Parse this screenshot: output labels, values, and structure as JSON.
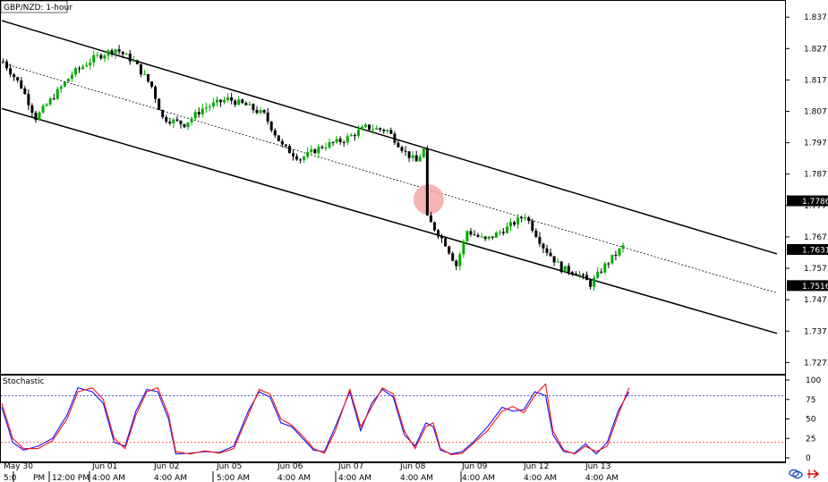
{
  "chart_data": {
    "type": "candlestick",
    "title": "GBP/NZD: 1-hour",
    "instrument": "GBP/NZD",
    "timeframe": "1-hour",
    "price_axis": {
      "ticks": [
        "1.8371",
        "1.8271",
        "1.8171",
        "1.8071",
        "1.7971",
        "1.7871",
        "1.7771",
        "1.7671",
        "1.7571",
        "1.7471",
        "1.7371",
        "1.7271"
      ],
      "ylim": [
        1.7235,
        1.842
      ]
    },
    "price_badges": [
      {
        "label": "1.7786",
        "value": 1.7786
      },
      {
        "label": "1.7631",
        "value": 1.7631
      },
      {
        "label": "1.7516",
        "value": 1.7516
      }
    ],
    "time_axis": {
      "date_labels": [
        "May 30",
        "Jun 01",
        "Jun 02",
        "Jun 05",
        "Jun 06",
        "Jun 07",
        "Jun 08",
        "Jun 09",
        "Jun 12",
        "Jun 13"
      ],
      "time_labels": [
        "5:0",
        "PM",
        "12:00 PM",
        "4:00 AM",
        "4:00 AM",
        "5:00 AM",
        "4:00 AM",
        "4:00 AM",
        "4:00 AM",
        "4:00 AM",
        "4:00 AM",
        "4:00 AM"
      ]
    },
    "price_keypoints": [
      [
        0,
        1.823
      ],
      [
        5,
        1.815
      ],
      [
        9,
        1.805
      ],
      [
        14,
        1.812
      ],
      [
        19,
        1.819
      ],
      [
        25,
        1.824
      ],
      [
        31,
        1.827
      ],
      [
        36,
        1.823
      ],
      [
        41,
        1.815
      ],
      [
        44,
        1.805
      ],
      [
        50,
        1.803
      ],
      [
        55,
        1.808
      ],
      [
        62,
        1.811
      ],
      [
        67,
        1.809
      ],
      [
        72,
        1.806
      ],
      [
        77,
        1.796
      ],
      [
        82,
        1.792
      ],
      [
        88,
        1.796
      ],
      [
        94,
        1.798
      ],
      [
        100,
        1.802
      ],
      [
        106,
        1.801
      ],
      [
        111,
        1.794
      ],
      [
        114,
        1.791
      ],
      [
        116,
        1.795
      ],
      [
        117,
        1.773
      ],
      [
        122,
        1.765
      ],
      [
        125,
        1.758
      ],
      [
        128,
        1.769
      ],
      [
        133,
        1.766
      ],
      [
        139,
        1.77
      ],
      [
        144,
        1.774
      ],
      [
        149,
        1.764
      ],
      [
        154,
        1.757
      ],
      [
        158,
        1.756
      ],
      [
        162,
        1.752
      ],
      [
        166,
        1.758
      ],
      [
        171,
        1.764
      ]
    ],
    "channel": {
      "upper": {
        "start": [
          0,
          1.836
        ],
        "end": [
          200,
          1.7665
        ]
      },
      "middle": {
        "start": [
          0,
          1.8225
        ],
        "end": [
          200,
          1.754
        ],
        "style": "dotted"
      },
      "lower": {
        "start": [
          0,
          1.808
        ],
        "end": [
          200,
          1.741
        ]
      }
    },
    "highlight": {
      "bar": 117,
      "price": 1.779,
      "color": "#f4a6a6"
    },
    "stochastic": {
      "title": "Stochastic",
      "ticks": [
        "100",
        "75",
        "50",
        "25",
        "0"
      ],
      "ylim": [
        0,
        100
      ],
      "levels": [
        80,
        20
      ],
      "series": [
        {
          "color": "#1010ff",
          "keypoints": [
            [
              0,
              65
            ],
            [
              3,
              20
            ],
            [
              6,
              10
            ],
            [
              10,
              15
            ],
            [
              14,
              25
            ],
            [
              18,
              55
            ],
            [
              21,
              90
            ],
            [
              25,
              85
            ],
            [
              28,
              70
            ],
            [
              31,
              20
            ],
            [
              34,
              15
            ],
            [
              37,
              60
            ],
            [
              40,
              88
            ],
            [
              43,
              85
            ],
            [
              46,
              50
            ],
            [
              48,
              5
            ],
            [
              52,
              6
            ],
            [
              56,
              8
            ],
            [
              60,
              7
            ],
            [
              64,
              15
            ],
            [
              68,
              60
            ],
            [
              71,
              85
            ],
            [
              74,
              78
            ],
            [
              77,
              45
            ],
            [
              80,
              40
            ],
            [
              83,
              25
            ],
            [
              86,
              10
            ],
            [
              89,
              8
            ],
            [
              92,
              40
            ],
            [
              96,
              85
            ],
            [
              99,
              35
            ],
            [
              102,
              70
            ],
            [
              105,
              88
            ],
            [
              108,
              78
            ],
            [
              111,
              30
            ],
            [
              114,
              15
            ],
            [
              117,
              45
            ],
            [
              119,
              40
            ],
            [
              121,
              10
            ],
            [
              124,
              5
            ],
            [
              127,
              8
            ],
            [
              130,
              20
            ],
            [
              134,
              40
            ],
            [
              138,
              65
            ],
            [
              141,
              60
            ],
            [
              144,
              62
            ],
            [
              147,
              85
            ],
            [
              150,
              80
            ],
            [
              152,
              30
            ],
            [
              155,
              8
            ],
            [
              158,
              6
            ],
            [
              161,
              18
            ],
            [
              164,
              5
            ],
            [
              167,
              20
            ],
            [
              170,
              60
            ],
            [
              173,
              85
            ]
          ]
        },
        {
          "color": "#ff1010",
          "keypoints": [
            [
              0,
              70
            ],
            [
              3,
              25
            ],
            [
              6,
              12
            ],
            [
              10,
              12
            ],
            [
              14,
              22
            ],
            [
              18,
              50
            ],
            [
              21,
              85
            ],
            [
              25,
              90
            ],
            [
              28,
              75
            ],
            [
              31,
              25
            ],
            [
              34,
              12
            ],
            [
              37,
              55
            ],
            [
              40,
              85
            ],
            [
              43,
              90
            ],
            [
              46,
              55
            ],
            [
              48,
              8
            ],
            [
              52,
              5
            ],
            [
              56,
              9
            ],
            [
              60,
              6
            ],
            [
              64,
              12
            ],
            [
              68,
              55
            ],
            [
              71,
              88
            ],
            [
              74,
              82
            ],
            [
              77,
              50
            ],
            [
              80,
              42
            ],
            [
              83,
              28
            ],
            [
              86,
              12
            ],
            [
              89,
              6
            ],
            [
              92,
              35
            ],
            [
              96,
              88
            ],
            [
              99,
              40
            ],
            [
              102,
              65
            ],
            [
              105,
              90
            ],
            [
              108,
              82
            ],
            [
              111,
              35
            ],
            [
              114,
              12
            ],
            [
              117,
              40
            ],
            [
              119,
              45
            ],
            [
              121,
              12
            ],
            [
              124,
              4
            ],
            [
              127,
              6
            ],
            [
              130,
              18
            ],
            [
              134,
              35
            ],
            [
              138,
              60
            ],
            [
              141,
              66
            ],
            [
              144,
              58
            ],
            [
              147,
              80
            ],
            [
              150,
              95
            ],
            [
              152,
              35
            ],
            [
              155,
              10
            ],
            [
              158,
              5
            ],
            [
              161,
              15
            ],
            [
              164,
              8
            ],
            [
              167,
              15
            ],
            [
              170,
              55
            ],
            [
              173,
              90
            ]
          ]
        }
      ]
    },
    "colors": {
      "bull": "#00aa00",
      "bear": "#000000",
      "badge_bg": "#000000",
      "upper_level_line": "#3333cc",
      "lower_level_line": "#ff3030"
    },
    "icons": [
      "link-icon",
      "arrow-right-icon"
    ]
  }
}
